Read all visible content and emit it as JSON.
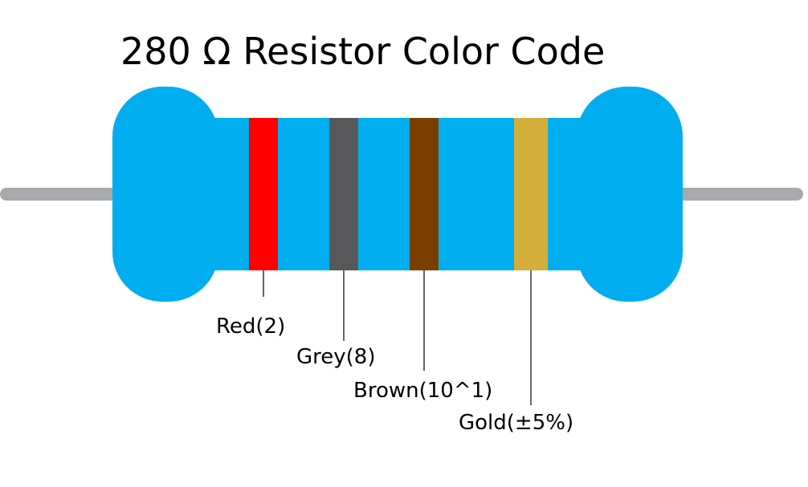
{
  "title": "280 Ω Resistor Color Code",
  "colors": {
    "body": "#00aeef",
    "lead": "#a7a9ac",
    "leader_line": "#000000"
  },
  "bands": [
    {
      "label": "Red(2)",
      "color": "#ff0000"
    },
    {
      "label": "Grey(8)",
      "color": "#58585a"
    },
    {
      "label": "Brown(10^1)",
      "color": "#7a3f00"
    },
    {
      "label": "Gold(±5%)",
      "color": "#d4ae3a"
    }
  ]
}
